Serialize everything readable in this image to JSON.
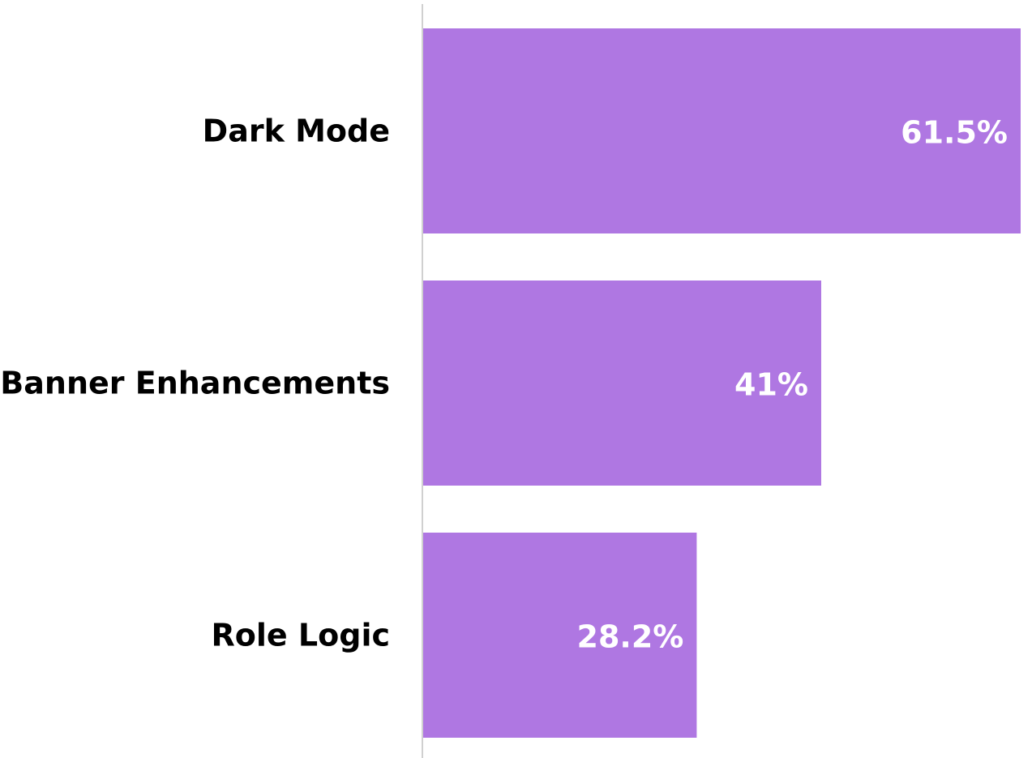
{
  "chart_data": {
    "type": "bar",
    "orientation": "horizontal",
    "categories": [
      "Dark Mode",
      "Banner Enhancements",
      "Role Logic"
    ],
    "values": [
      61.5,
      41,
      28.2
    ],
    "value_labels": [
      "61.5%",
      "41%",
      "28.2%"
    ],
    "unit": "%",
    "title": "",
    "xlabel": "",
    "ylabel": "",
    "xlim": [
      0,
      61.5
    ],
    "grid": false,
    "legend": "none",
    "bar_color": "#af77e2",
    "axis_color": "#d0d0d0"
  }
}
